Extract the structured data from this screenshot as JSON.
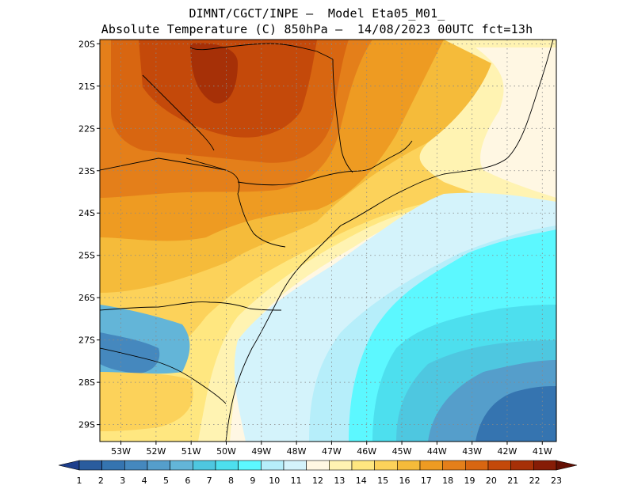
{
  "title": {
    "line1": "DIMNT/CGCT/INPE –  Model Eta05_M01_",
    "line2": "Absolute Temperature (C) 850hPa –  14/08/2023 00UTC fct=13h"
  },
  "map": {
    "lat_labels": [
      "20S",
      "21S",
      "22S",
      "23S",
      "24S",
      "25S",
      "26S",
      "27S",
      "28S",
      "29S"
    ],
    "lon_labels": [
      "53W",
      "52W",
      "51W",
      "50W",
      "49W",
      "48W",
      "47W",
      "46W",
      "45W",
      "44W",
      "43W",
      "42W",
      "41W"
    ],
    "lat_range": [
      -29.4,
      -19.9
    ],
    "lon_range": [
      -53.6,
      -40.6
    ],
    "gridlines": "dotted"
  },
  "colorbar": {
    "labels": [
      "1",
      "2",
      "3",
      "4",
      "5",
      "6",
      "7",
      "8",
      "9",
      "10",
      "11",
      "12",
      "13",
      "14",
      "15",
      "16",
      "17",
      "18",
      "19",
      "20",
      "21",
      "22",
      "23"
    ],
    "colors": [
      "#1d3e8c",
      "#2a5c9e",
      "#3574b0",
      "#4588be",
      "#559ecb",
      "#63b5d8",
      "#4ec7e0",
      "#4ddfee",
      "#5cf8ff",
      "#b6eefa",
      "#d4f3fb",
      "#fff7e3",
      "#fff3b2",
      "#ffe780",
      "#fcd25a",
      "#f5bb3a",
      "#ee9b22",
      "#e47f1a",
      "#d86611",
      "#c4490a",
      "#a63007",
      "#861c06",
      "#641004"
    ]
  }
}
